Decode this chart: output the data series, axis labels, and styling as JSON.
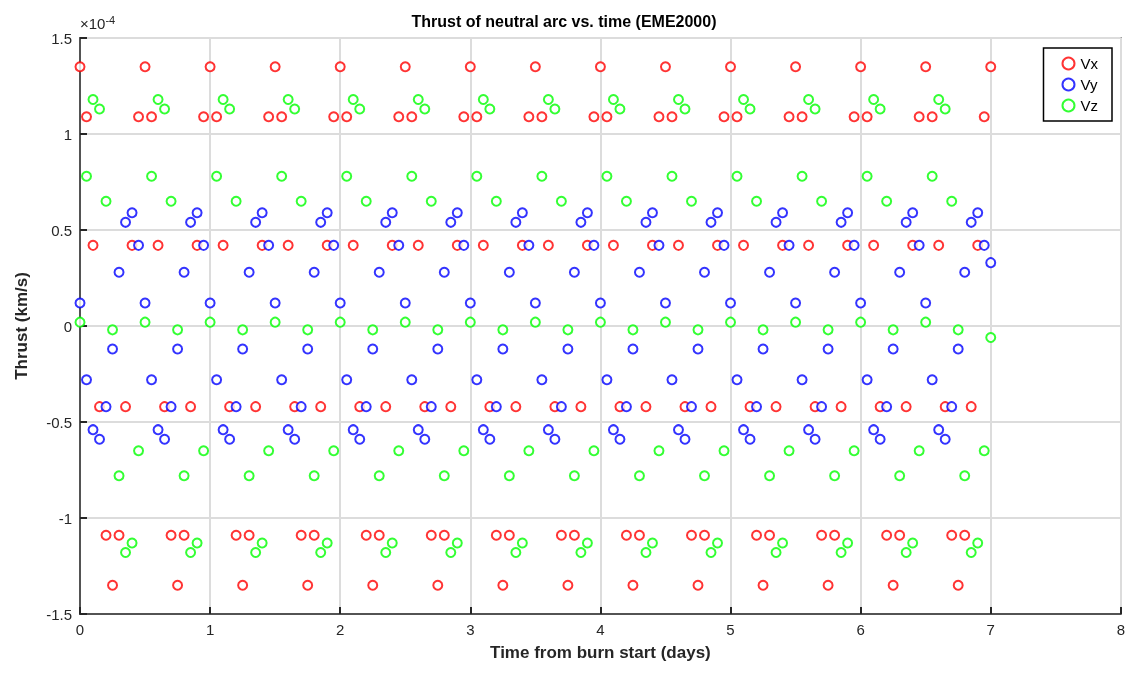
{
  "chart_data": {
    "type": "scatter",
    "title": "Thrust of neutral arc vs. time (EME2000)",
    "xlabel": "Time from burn start (days)",
    "ylabel": "Thrust (km/s)",
    "annotations": [
      "×10$^{-4}$"
    ],
    "x": [
      0,
      0.05,
      0.1,
      0.15,
      0.2,
      0.25,
      0.3,
      0.35,
      0.4,
      0.45,
      0.5,
      0.55,
      0.6,
      0.65,
      0.7,
      0.75,
      0.8,
      0.85,
      0.9,
      0.95,
      1,
      1.05,
      1.1,
      1.15,
      1.2,
      1.25,
      1.3,
      1.35,
      1.4,
      1.45,
      1.5,
      1.55,
      1.6,
      1.65,
      1.7,
      1.75,
      1.8,
      1.85,
      1.9,
      1.95,
      2,
      2.05,
      2.1,
      2.15,
      2.2,
      2.25,
      2.3,
      2.35,
      2.4,
      2.45,
      2.5,
      2.55,
      2.6,
      2.65,
      2.7,
      2.75,
      2.8,
      2.85,
      2.9,
      2.95,
      3,
      3.05,
      3.1,
      3.15,
      3.2,
      3.25,
      3.3,
      3.35,
      3.4,
      3.45,
      3.5,
      3.55,
      3.6,
      3.65,
      3.7,
      3.75,
      3.8,
      3.85,
      3.9,
      3.95,
      4,
      4.05,
      4.1,
      4.15,
      4.2,
      4.25,
      4.3,
      4.35,
      4.4,
      4.45,
      4.5,
      4.55,
      4.6,
      4.65,
      4.7,
      4.75,
      4.8,
      4.85,
      4.9,
      4.95,
      5,
      5.05,
      5.1,
      5.15,
      5.2,
      5.25,
      5.3,
      5.35,
      5.4,
      5.45,
      5.5,
      5.55,
      5.6,
      5.65,
      5.7,
      5.75,
      5.8,
      5.85,
      5.9,
      5.95,
      6,
      6.05,
      6.1,
      6.15,
      6.2,
      6.25,
      6.3,
      6.35,
      6.4,
      6.45,
      6.5,
      6.55,
      6.6,
      6.65,
      6.7,
      6.75,
      6.8,
      6.85,
      6.9,
      6.95,
      7
    ],
    "series": [
      {
        "name": "Vx",
        "color": "#ff0000",
        "values": [
          1.35,
          1.09,
          0.42,
          -0.42,
          -1.09,
          -1.35,
          -1.09,
          -0.42,
          0.42,
          1.09,
          1.35,
          1.09,
          0.42,
          -0.42,
          -1.09,
          -1.35,
          -1.09,
          -0.42,
          0.42,
          1.09,
          1.35,
          1.09,
          0.42,
          -0.42,
          -1.09,
          -1.35,
          -1.09,
          -0.42,
          0.42,
          1.09,
          1.35,
          1.09,
          0.42,
          -0.42,
          -1.09,
          -1.35,
          -1.09,
          -0.42,
          0.42,
          1.09,
          1.35,
          1.09,
          0.42,
          -0.42,
          -1.09,
          -1.35,
          -1.09,
          -0.42,
          0.42,
          1.09,
          1.35,
          1.09,
          0.42,
          -0.42,
          -1.09,
          -1.35,
          -1.09,
          -0.42,
          0.42,
          1.09,
          1.35,
          1.09,
          0.42,
          -0.42,
          -1.09,
          -1.35,
          -1.09,
          -0.42,
          0.42,
          1.09,
          1.35,
          1.09,
          0.42,
          -0.42,
          -1.09,
          -1.35,
          -1.09,
          -0.42,
          0.42,
          1.09,
          1.35,
          1.09,
          0.42,
          -0.42,
          -1.09,
          -1.35,
          -1.09,
          -0.42,
          0.42,
          1.09,
          1.35,
          1.09,
          0.42,
          -0.42,
          -1.09,
          -1.35,
          -1.09,
          -0.42,
          0.42,
          1.09,
          1.35,
          1.09,
          0.42,
          -0.42,
          -1.09,
          -1.35,
          -1.09,
          -0.42,
          0.42,
          1.09,
          1.35,
          1.09,
          0.42,
          -0.42,
          -1.09,
          -1.35,
          -1.09,
          -0.42,
          0.42,
          1.09,
          1.35,
          1.09,
          0.42,
          -0.42,
          -1.09,
          -1.35,
          -1.09,
          -0.42,
          0.42,
          1.09,
          1.35,
          1.09,
          0.42,
          -0.42,
          -1.09,
          -1.35,
          -1.09,
          -0.42,
          0.42,
          1.09,
          1.35
        ]
      },
      {
        "name": "Vy",
        "color": "#0000ff",
        "values": [
          0.12,
          -0.28,
          -0.54,
          -0.59,
          -0.42,
          -0.12,
          0.28,
          0.54,
          0.59,
          0.42,
          0.12,
          -0.28,
          -0.54,
          -0.59,
          -0.42,
          -0.12,
          0.28,
          0.54,
          0.59,
          0.42,
          0.12,
          -0.28,
          -0.54,
          -0.59,
          -0.42,
          -0.12,
          0.28,
          0.54,
          0.59,
          0.42,
          0.12,
          -0.28,
          -0.54,
          -0.59,
          -0.42,
          -0.12,
          0.28,
          0.54,
          0.59,
          0.42,
          0.12,
          -0.28,
          -0.54,
          -0.59,
          -0.42,
          -0.12,
          0.28,
          0.54,
          0.59,
          0.42,
          0.12,
          -0.28,
          -0.54,
          -0.59,
          -0.42,
          -0.12,
          0.28,
          0.54,
          0.59,
          0.42,
          0.12,
          -0.28,
          -0.54,
          -0.59,
          -0.42,
          -0.12,
          0.28,
          0.54,
          0.59,
          0.42,
          0.12,
          -0.28,
          -0.54,
          -0.59,
          -0.42,
          -0.12,
          0.28,
          0.54,
          0.59,
          0.42,
          0.12,
          -0.28,
          -0.54,
          -0.59,
          -0.42,
          -0.12,
          0.28,
          0.54,
          0.59,
          0.42,
          0.12,
          -0.28,
          -0.54,
          -0.59,
          -0.42,
          -0.12,
          0.28,
          0.54,
          0.59,
          0.42,
          0.12,
          -0.28,
          -0.54,
          -0.59,
          -0.42,
          -0.12,
          0.28,
          0.54,
          0.59,
          0.42,
          0.12,
          -0.28,
          -0.54,
          -0.59,
          -0.42,
          -0.12,
          0.28,
          0.54,
          0.59,
          0.42,
          0.12,
          -0.28,
          -0.54,
          -0.59,
          -0.42,
          -0.12,
          0.28,
          0.54,
          0.59,
          0.42,
          0.12,
          -0.28,
          -0.54,
          -0.59,
          -0.42,
          -0.12,
          0.28,
          0.54,
          0.59,
          0.42,
          0.33
        ]
      },
      {
        "name": "Vz",
        "color": "#00ff00",
        "values": [
          0.02,
          0.78,
          1.18,
          1.13,
          0.65,
          -0.02,
          -0.78,
          -1.18,
          -1.13,
          -0.65,
          0.02,
          0.78,
          1.18,
          1.13,
          0.65,
          -0.02,
          -0.78,
          -1.18,
          -1.13,
          -0.65,
          0.02,
          0.78,
          1.18,
          1.13,
          0.65,
          -0.02,
          -0.78,
          -1.18,
          -1.13,
          -0.65,
          0.02,
          0.78,
          1.18,
          1.13,
          0.65,
          -0.02,
          -0.78,
          -1.18,
          -1.13,
          -0.65,
          0.02,
          0.78,
          1.18,
          1.13,
          0.65,
          -0.02,
          -0.78,
          -1.18,
          -1.13,
          -0.65,
          0.02,
          0.78,
          1.18,
          1.13,
          0.65,
          -0.02,
          -0.78,
          -1.18,
          -1.13,
          -0.65,
          0.02,
          0.78,
          1.18,
          1.13,
          0.65,
          -0.02,
          -0.78,
          -1.18,
          -1.13,
          -0.65,
          0.02,
          0.78,
          1.18,
          1.13,
          0.65,
          -0.02,
          -0.78,
          -1.18,
          -1.13,
          -0.65,
          0.02,
          0.78,
          1.18,
          1.13,
          0.65,
          -0.02,
          -0.78,
          -1.18,
          -1.13,
          -0.65,
          0.02,
          0.78,
          1.18,
          1.13,
          0.65,
          -0.02,
          -0.78,
          -1.18,
          -1.13,
          -0.65,
          0.02,
          0.78,
          1.18,
          1.13,
          0.65,
          -0.02,
          -0.78,
          -1.18,
          -1.13,
          -0.65,
          0.02,
          0.78,
          1.18,
          1.13,
          0.65,
          -0.02,
          -0.78,
          -1.18,
          -1.13,
          -0.65,
          0.02,
          0.78,
          1.18,
          1.13,
          0.65,
          -0.02,
          -0.78,
          -1.18,
          -1.13,
          -0.65,
          0.02,
          0.78,
          1.18,
          1.13,
          0.65,
          -0.02,
          -0.78,
          -1.18,
          -1.13,
          -0.65,
          -0.06
        ]
      }
    ],
    "xlim": [
      0,
      8
    ],
    "xticks": [
      0,
      1,
      2,
      3,
      4,
      5,
      6,
      7,
      8
    ],
    "ylim": [
      -1.5,
      1.5
    ],
    "yticks": [
      -1.5,
      -1,
      -0.5,
      0,
      0.5,
      1,
      1.5
    ],
    "grid": true,
    "legend": "top right",
    "marker": "circle"
  }
}
